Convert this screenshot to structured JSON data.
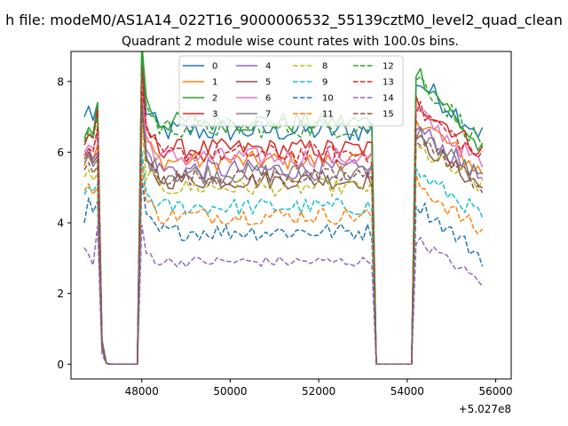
{
  "chart_data": {
    "type": "line",
    "suptitle": "h file: modeM0/AS1A14_022T16_9000006532_55139cztM0_level2_quad_clean",
    "title": "Quadrant 2 module wise count rates with 100.0s bins.",
    "xlabel": "",
    "ylabel": "",
    "xlim": [
      46400,
      56350
    ],
    "ylim": [
      -0.42,
      8.85
    ],
    "x_offset_label": "+5.027e8",
    "xticks": [
      48000,
      50000,
      52000,
      54000,
      56000
    ],
    "xtick_labels": [
      "48000",
      "50000",
      "52000",
      "54000",
      "56000"
    ],
    "yticks": [
      0,
      2,
      4,
      6,
      8
    ],
    "ytick_labels": [
      "0",
      "2",
      "4",
      "6",
      "8"
    ],
    "grid": false,
    "legend_position": "top-center",
    "legend_columns": 4,
    "segments": [
      {
        "x_start": 46700,
        "x_end": 47000,
        "n": 4
      },
      {
        "x_start": 47100,
        "x_end": 47200,
        "n": 2
      },
      {
        "x_start": 47300,
        "x_end": 47900,
        "n": 7
      },
      {
        "x_start": 48000,
        "x_end": 53200,
        "n": 53
      },
      {
        "x_start": 53300,
        "x_end": 54100,
        "n": 9
      },
      {
        "x_start": 54200,
        "x_end": 55700,
        "n": 16
      }
    ],
    "series": [
      {
        "name": "0",
        "color": "#1f77b4",
        "dash": "solid",
        "rates": [
          7.0,
          7.3,
          6.9,
          7.4
        ],
        "level": 6.6,
        "noise": 0.33,
        "tail": 6.5
      },
      {
        "name": "1",
        "color": "#ff7f0e",
        "dash": "solid",
        "rates": [
          5.6,
          6.0,
          5.8,
          6.2
        ],
        "level": 5.75,
        "noise": 0.28,
        "tail": 5.4
      },
      {
        "name": "2",
        "color": "#2ca02c",
        "dash": "solid",
        "rates": [
          6.4,
          6.7,
          6.5,
          7.4
        ],
        "level": 6.85,
        "noise": 0.3,
        "tail": 6.0
      },
      {
        "name": "3",
        "color": "#d62728",
        "dash": "solid",
        "rates": [
          6.2,
          6.5,
          6.4,
          7.2
        ],
        "level": 6.1,
        "noise": 0.28,
        "tail": 6.0
      },
      {
        "name": "4",
        "color": "#9467bd",
        "dash": "solid",
        "rates": [
          5.9,
          6.1,
          5.8,
          6.0
        ],
        "level": 5.5,
        "noise": 0.3,
        "tail": 5.2
      },
      {
        "name": "5",
        "color": "#8c564b",
        "dash": "solid",
        "rates": [
          5.8,
          6.0,
          5.7,
          5.9
        ],
        "level": 5.2,
        "noise": 0.25,
        "tail": 5.0
      },
      {
        "name": "6",
        "color": "#e377c2",
        "dash": "solid",
        "rates": [
          6.0,
          6.2,
          6.1,
          6.5
        ],
        "level": 5.85,
        "noise": 0.28,
        "tail": 5.6
      },
      {
        "name": "7",
        "color": "#7f7f7f",
        "dash": "solid",
        "rates": [
          5.7,
          5.9,
          5.6,
          5.8
        ],
        "level": 5.4,
        "noise": 0.3,
        "tail": 5.2
      },
      {
        "name": "8",
        "color": "#bcbd22",
        "dash": "dashed",
        "rates": [
          5.3,
          5.5,
          5.2,
          5.4
        ],
        "level": 5.0,
        "noise": 0.25,
        "tail": 5.0
      },
      {
        "name": "9",
        "color": "#17becf",
        "dash": "dashed",
        "rates": [
          4.8,
          5.0,
          4.9,
          5.1
        ],
        "level": 4.45,
        "noise": 0.25,
        "tail": 4.2
      },
      {
        "name": "10",
        "color": "#1f77b4",
        "dash": "dashed",
        "rates": [
          4.0,
          4.7,
          4.3,
          4.6
        ],
        "level": 3.75,
        "noise": 0.25,
        "tail": 3.0
      },
      {
        "name": "11",
        "color": "#ff7f0e",
        "dash": "dashed",
        "rates": [
          4.9,
          5.1,
          4.8,
          5.0
        ],
        "level": 4.2,
        "noise": 0.25,
        "tail": 3.7
      },
      {
        "name": "12",
        "color": "#2ca02c",
        "dash": "dashed",
        "rates": [
          6.3,
          6.6,
          6.4,
          7.0
        ],
        "level": 6.7,
        "noise": 0.3,
        "tail": 6.2
      },
      {
        "name": "13",
        "color": "#d62728",
        "dash": "dashed",
        "rates": [
          5.9,
          6.1,
          6.0,
          6.7
        ],
        "level": 5.95,
        "noise": 0.28,
        "tail": 5.8
      },
      {
        "name": "14",
        "color": "#9467bd",
        "dash": "dashed",
        "rates": [
          3.3,
          3.1,
          2.8,
          3.9
        ],
        "level": 2.9,
        "noise": 0.15,
        "tail": 2.3
      },
      {
        "name": "15",
        "color": "#8c564b",
        "dash": "dashed",
        "rates": [
          5.5,
          5.7,
          5.4,
          5.6
        ],
        "level": 5.3,
        "noise": 0.25,
        "tail": 5.0
      }
    ]
  }
}
